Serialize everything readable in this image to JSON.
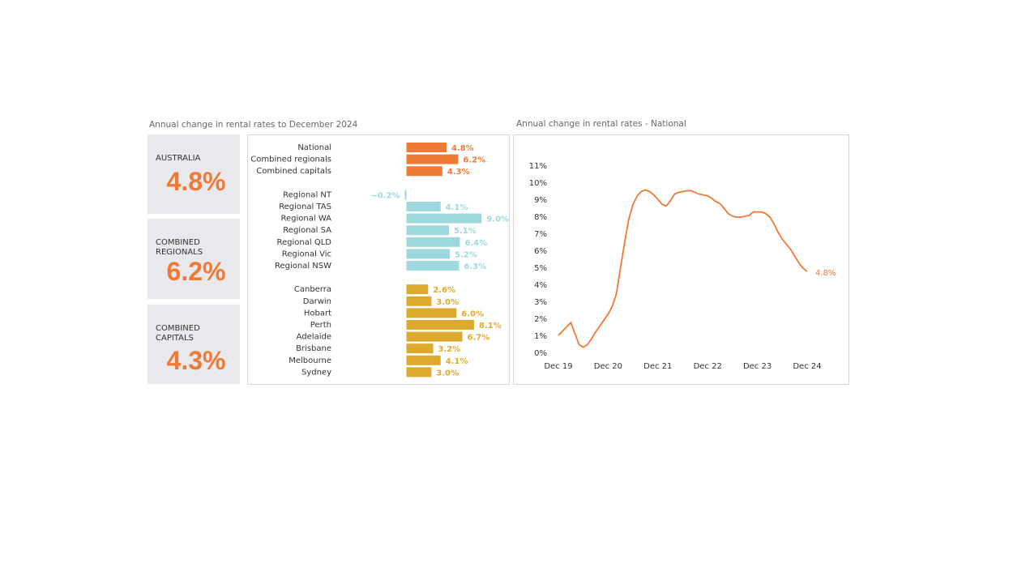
{
  "heading": "Annual change in rental rates to December 2024",
  "cards": [
    {
      "label": "AUSTRALIA",
      "value": "4.8%"
    },
    {
      "label": "COMBINED REGIONALS",
      "value": "6.2%"
    },
    {
      "label": "COMBINED CAPITALS",
      "value": "4.3%"
    }
  ],
  "chart_data": [
    {
      "type": "bar",
      "orientation": "horizontal",
      "categories": [
        "National",
        "Combined regionals",
        "Combined capitals",
        null,
        "Regional NT",
        "Regional TAS",
        "Regional WA",
        "Regional SA",
        "Regional QLD",
        "Regional Vic",
        "Regional NSW",
        null,
        "Canberra",
        "Darwin",
        "Hobart",
        "Perth",
        "Adelaide",
        "Brisbane",
        "Melbourne",
        "Sydney"
      ],
      "series": [
        {
          "color": "#f07a35",
          "values": [
            4.8,
            6.2,
            4.3,
            null,
            null,
            null,
            null,
            null,
            null,
            null,
            null,
            null,
            null,
            null,
            null,
            null,
            null,
            null,
            null,
            null
          ],
          "value_labels": [
            "4.8%",
            "6.2%",
            "4.3%",
            null,
            null,
            null,
            null,
            null,
            null,
            null,
            null,
            null,
            null,
            null,
            null,
            null,
            null,
            null,
            null,
            null
          ]
        },
        {
          "color": "#9dd8df",
          "values": [
            null,
            null,
            null,
            null,
            -0.2,
            4.1,
            9.0,
            5.1,
            6.4,
            5.2,
            6.3,
            null,
            null,
            null,
            null,
            null,
            null,
            null,
            null,
            null
          ],
          "value_labels": [
            null,
            null,
            null,
            null,
            "−0.2%",
            "4.1%",
            "9.0%",
            "5.1%",
            "6.4%",
            "5.2%",
            "6.3%",
            null,
            null,
            null,
            null,
            null,
            null,
            null,
            null,
            null
          ]
        },
        {
          "color": "#deaa2e",
          "values": [
            null,
            null,
            null,
            null,
            null,
            null,
            null,
            null,
            null,
            null,
            null,
            null,
            2.6,
            3.0,
            6.0,
            8.1,
            6.7,
            3.2,
            4.1,
            3.0
          ],
          "value_labels": [
            null,
            null,
            null,
            null,
            null,
            null,
            null,
            null,
            null,
            null,
            null,
            null,
            "2.6%",
            "3.0%",
            "6.0%",
            "8.1%",
            "6.7%",
            "3.2%",
            "4.1%",
            "3.0%"
          ]
        }
      ]
    },
    {
      "type": "line",
      "title": "Annual change in rental rates - National",
      "x": [
        "Dec 19",
        "Jan 20",
        "Feb 20",
        "Mar 20",
        "Apr 20",
        "May 20",
        "Jun 20",
        "Jul 20",
        "Aug 20",
        "Sep 20",
        "Oct 20",
        "Nov 20",
        "Dec 20",
        "Jan 21",
        "Feb 21",
        "Mar 21",
        "Apr 21",
        "May 21",
        "Jun 21",
        "Jul 21",
        "Aug 21",
        "Sep 21",
        "Oct 21",
        "Nov 21",
        "Dec 21",
        "Jan 22",
        "Feb 22",
        "Mar 22",
        "Apr 22",
        "May 22",
        "Jun 22",
        "Jul 22",
        "Aug 22",
        "Sep 22",
        "Oct 22",
        "Nov 22",
        "Dec 22",
        "Jan 23",
        "Feb 23",
        "Mar 23",
        "Apr 23",
        "May 23",
        "Jun 23",
        "Jul 23",
        "Aug 23",
        "Sep 23",
        "Oct 23",
        "Nov 23",
        "Dec 23",
        "Jan 24",
        "Feb 24",
        "Mar 24",
        "Apr 24",
        "May 24",
        "Jun 24",
        "Jul 24",
        "Aug 24",
        "Sep 24",
        "Oct 24",
        "Nov 24",
        "Dec 24"
      ],
      "xticks": [
        "Dec 19",
        "Dec 20",
        "Dec 21",
        "Dec 22",
        "Dec 23",
        "Dec 24"
      ],
      "ylim": [
        0,
        11
      ],
      "yticks": [
        {
          "value": 0,
          "label": "0%"
        },
        {
          "value": 1,
          "label": "1%"
        },
        {
          "value": 2,
          "label": "2%"
        },
        {
          "value": 3,
          "label": "3%"
        },
        {
          "value": 4,
          "label": "4%"
        },
        {
          "value": 5,
          "label": "5%"
        },
        {
          "value": 6,
          "label": "6%"
        },
        {
          "value": 7,
          "label": "7%"
        },
        {
          "value": 8,
          "label": "8%"
        },
        {
          "value": 9,
          "label": "9%"
        },
        {
          "value": 10,
          "label": "10%"
        },
        {
          "value": 11,
          "label": "11%"
        }
      ],
      "grid": false,
      "series": [
        {
          "color": "#f07a35",
          "values": [
            1.05,
            1.3,
            1.55,
            1.8,
            1.15,
            0.5,
            0.35,
            0.5,
            0.85,
            1.25,
            1.6,
            1.95,
            2.3,
            2.75,
            3.5,
            5.05,
            6.55,
            7.9,
            8.75,
            9.25,
            9.5,
            9.6,
            9.5,
            9.3,
            9.05,
            8.75,
            8.65,
            8.95,
            9.35,
            9.45,
            9.5,
            9.55,
            9.55,
            9.45,
            9.35,
            9.3,
            9.25,
            9.1,
            8.9,
            8.8,
            8.5,
            8.2,
            8.05,
            8.0,
            8.0,
            8.05,
            8.1,
            8.3,
            8.3,
            8.3,
            8.2,
            8.0,
            7.6,
            7.1,
            6.7,
            6.4,
            6.1,
            5.7,
            5.3,
            5.0,
            4.8
          ],
          "value_labels": [
            null,
            null,
            null,
            null,
            null,
            null,
            null,
            null,
            null,
            null,
            null,
            null,
            null,
            null,
            null,
            null,
            null,
            null,
            null,
            null,
            null,
            null,
            null,
            null,
            null,
            null,
            null,
            null,
            null,
            null,
            null,
            null,
            null,
            null,
            null,
            null,
            null,
            null,
            null,
            null,
            null,
            null,
            null,
            null,
            null,
            null,
            null,
            null,
            null,
            null,
            null,
            null,
            null,
            null,
            null,
            null,
            null,
            null,
            null,
            null,
            "4.8%"
          ]
        }
      ]
    }
  ]
}
